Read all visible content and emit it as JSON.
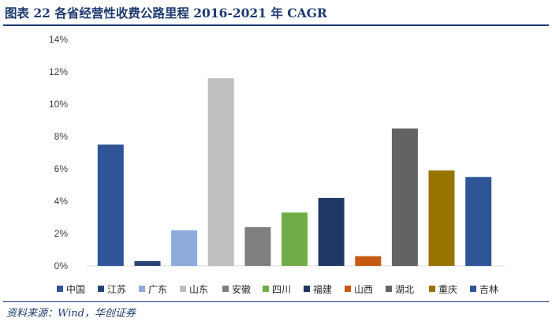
{
  "header": {
    "title": "图表 22 各省经营性收费公路里程 2016-2021 年 CAGR"
  },
  "footer": {
    "source": "资料来源：Wind，华创证券"
  },
  "chart_data": {
    "type": "bar",
    "title": "",
    "xlabel": "",
    "ylabel": "",
    "ylim": [
      0,
      14
    ],
    "yticks": [
      "0%",
      "2%",
      "4%",
      "6%",
      "8%",
      "10%",
      "12%",
      "14%"
    ],
    "grid": false,
    "legend_position": "bottom",
    "categories": [
      "中国",
      "江苏",
      "广东",
      "山东",
      "安徽",
      "四川",
      "福建",
      "山西",
      "湖北",
      "重庆",
      "吉林"
    ],
    "values": [
      7.5,
      0.3,
      2.2,
      11.6,
      2.4,
      3.3,
      4.2,
      0.6,
      8.5,
      5.9,
      5.5
    ],
    "unit": "%",
    "colors": [
      "#2f5597",
      "#264478",
      "#8faadc",
      "#bfbfbf",
      "#7f7f7f",
      "#70ad47",
      "#203864",
      "#c55a11",
      "#636363",
      "#997300",
      "#2f5597"
    ]
  }
}
